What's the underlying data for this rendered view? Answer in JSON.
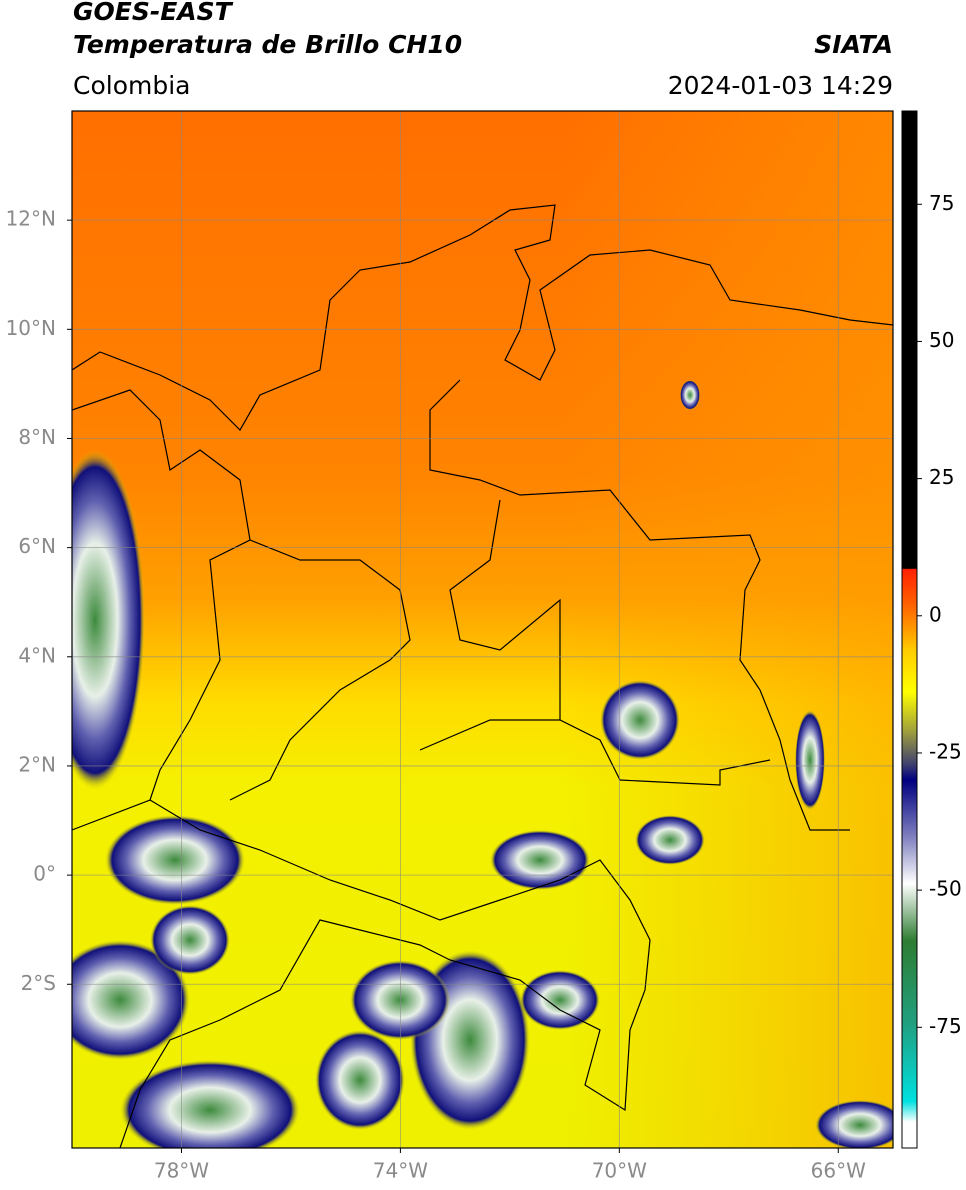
{
  "header": {
    "title": "GOES-EAST",
    "subtitle": "Temperatura de Brillo CH10",
    "region": "Colombia",
    "source": "SIATA",
    "datetime": "2024-01-03 14:29"
  },
  "map": {
    "xlim": [
      -80,
      -65
    ],
    "ylim": [
      -5,
      14
    ],
    "xticks": [
      {
        "value": -78,
        "label": "78°W"
      },
      {
        "value": -74,
        "label": "74°W"
      },
      {
        "value": -70,
        "label": "70°W"
      },
      {
        "value": -66,
        "label": "66°W"
      }
    ],
    "yticks": [
      {
        "value": 12,
        "label": "12°N"
      },
      {
        "value": 10,
        "label": "10°N"
      },
      {
        "value": 8,
        "label": "8°N"
      },
      {
        "value": 6,
        "label": "6°N"
      },
      {
        "value": 4,
        "label": "4°N"
      },
      {
        "value": 2,
        "label": "2°N"
      },
      {
        "value": 0,
        "label": "0°"
      },
      {
        "value": -2,
        "label": "2°S"
      }
    ],
    "grid": true
  },
  "colorbar": {
    "lim": [
      -97,
      92
    ],
    "ticks": [
      75,
      50,
      25,
      0,
      -25,
      -50,
      -75
    ]
  }
}
